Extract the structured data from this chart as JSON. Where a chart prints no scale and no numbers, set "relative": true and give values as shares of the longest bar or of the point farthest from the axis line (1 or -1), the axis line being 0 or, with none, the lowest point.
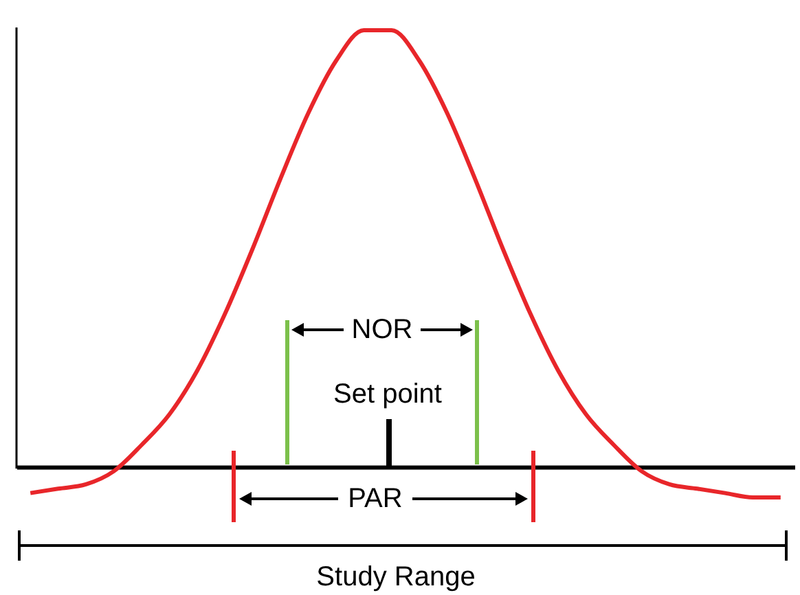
{
  "chart_data": {
    "type": "line",
    "relative": true,
    "categories": [
      null,
      null,
      null,
      null,
      null,
      null,
      null,
      null,
      null,
      null,
      null,
      null,
      null,
      null,
      null,
      null,
      null,
      null,
      null,
      null,
      null,
      null,
      null,
      null,
      null,
      null,
      null,
      null
    ],
    "series": [
      {
        "color": "#e8262a",
        "values": [
          -0.06,
          -0.05,
          -0.04,
          -0.01,
          0.05,
          0.12,
          0.22,
          0.35,
          0.5,
          0.66,
          0.81,
          0.93,
          1,
          1,
          0.93,
          0.81,
          0.66,
          0.5,
          0.35,
          0.22,
          0.12,
          0.05,
          -0.01,
          -0.04,
          -0.05,
          -0.06,
          -0.07,
          -0.07
        ]
      }
    ],
    "annotations": [
      "NOR",
      "Set point",
      "PAR",
      "Study Range"
    ]
  }
}
